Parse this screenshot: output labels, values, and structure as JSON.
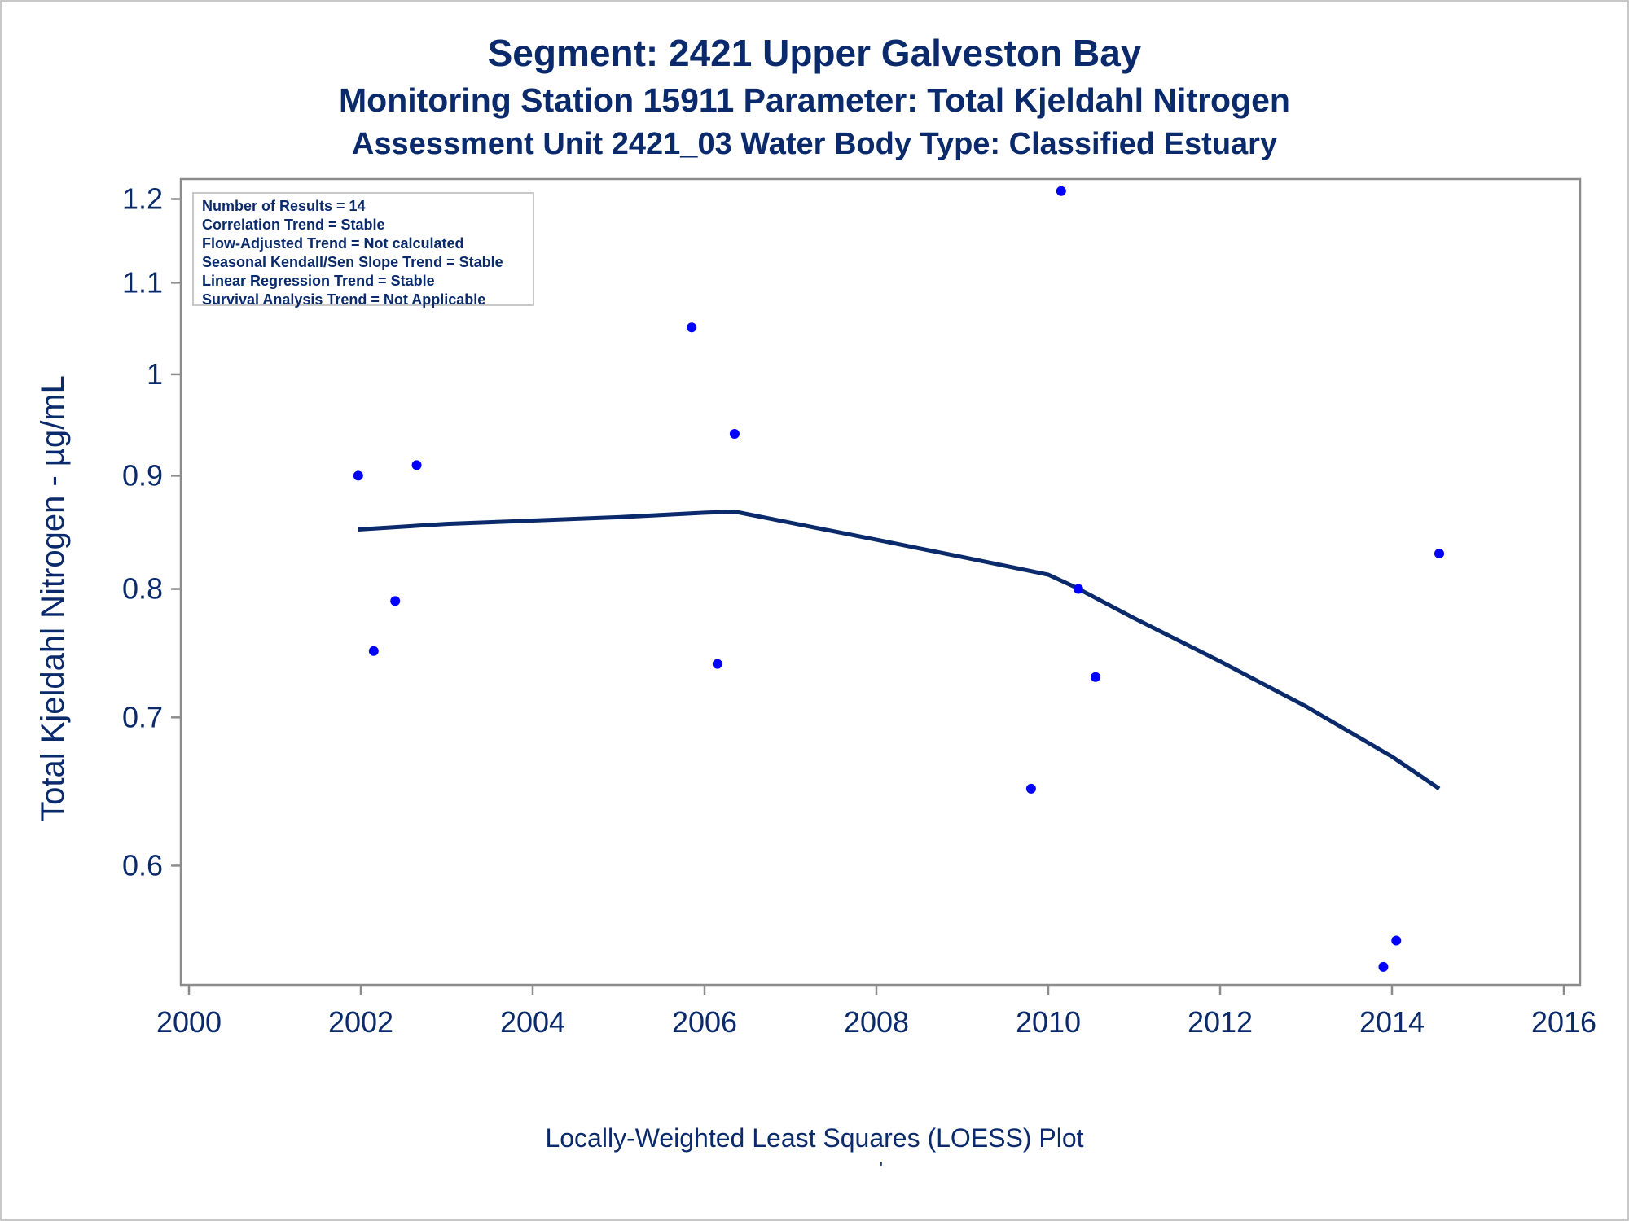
{
  "chart_data": {
    "type": "scatter",
    "title": "Segment: 2421  Upper Galveston Bay",
    "subtitle": "Monitoring Station 15911 Parameter: Total Kjeldahl Nitrogen",
    "subtitle2": "Assessment Unit 2421_03   Water Body Type: Classified Estuary",
    "xlabel": "Locally-Weighted Least Squares (LOESS) Plot",
    "ylabel": "Total Kjeldahl Nitrogen -  µg/mL",
    "footnote_mark": "'",
    "xlim": [
      2000,
      2016
    ],
    "ylim": [
      0.53,
      1.22
    ],
    "yscale": "log",
    "xticks": [
      "2000",
      "2002",
      "2004",
      "2006",
      "2008",
      "2010",
      "2012",
      "2014",
      "2016"
    ],
    "yticks": [
      "0.6",
      "0.7",
      "0.8",
      "0.9",
      "1",
      "1.1",
      "1.2"
    ],
    "grid": false,
    "stats": [
      "Number of Results = 14",
      "Correlation Trend = Stable",
      "Flow-Adjusted Trend = Not calculated",
      "Seasonal Kendall/Sen Slope Trend = Stable",
      "Linear Regression Trend = Stable",
      "Survival Analysis Trend = Not Applicable"
    ],
    "points": [
      {
        "x": 2001.97,
        "y": 0.9
      },
      {
        "x": 2002.15,
        "y": 0.75
      },
      {
        "x": 2002.4,
        "y": 0.79
      },
      {
        "x": 2002.65,
        "y": 0.91
      },
      {
        "x": 2005.85,
        "y": 1.05
      },
      {
        "x": 2006.15,
        "y": 0.74
      },
      {
        "x": 2006.35,
        "y": 0.94
      },
      {
        "x": 2009.8,
        "y": 0.65
      },
      {
        "x": 2010.15,
        "y": 1.21
      },
      {
        "x": 2010.35,
        "y": 0.8
      },
      {
        "x": 2010.55,
        "y": 0.73
      },
      {
        "x": 2013.9,
        "y": 0.54
      },
      {
        "x": 2014.05,
        "y": 0.555
      },
      {
        "x": 2014.55,
        "y": 0.83
      }
    ],
    "loess": [
      {
        "x": 2001.97,
        "y": 0.851
      },
      {
        "x": 2003.0,
        "y": 0.856
      },
      {
        "x": 2004.0,
        "y": 0.859
      },
      {
        "x": 2005.0,
        "y": 0.862
      },
      {
        "x": 2006.0,
        "y": 0.866
      },
      {
        "x": 2006.35,
        "y": 0.867
      },
      {
        "x": 2007.0,
        "y": 0.857
      },
      {
        "x": 2008.0,
        "y": 0.842
      },
      {
        "x": 2009.0,
        "y": 0.827
      },
      {
        "x": 2010.0,
        "y": 0.812
      },
      {
        "x": 2010.3,
        "y": 0.802
      },
      {
        "x": 2011.0,
        "y": 0.776
      },
      {
        "x": 2012.0,
        "y": 0.742
      },
      {
        "x": 2013.0,
        "y": 0.708
      },
      {
        "x": 2014.0,
        "y": 0.672
      },
      {
        "x": 2014.55,
        "y": 0.65
      }
    ],
    "colors": {
      "text": "#0a2a6b",
      "points": "#0000ff",
      "line": "#0a2a6b",
      "axis": "#8c8c8c"
    }
  }
}
